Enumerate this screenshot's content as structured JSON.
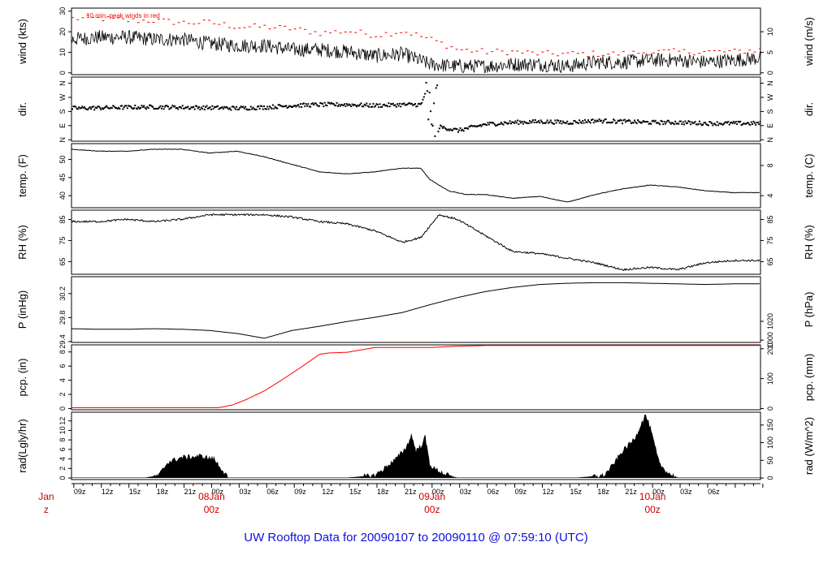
{
  "title": "UW Rooftop Data for 20090107  to  20090110 @ 07:59:10  (UTC)",
  "colors": {
    "title": "#1010dd",
    "date_labels": "#cc0000",
    "line": "#000000",
    "precip": "#ff0000",
    "peak_winds": "#ff0000",
    "background": "#ffffff"
  },
  "x_axis": {
    "hour_labels": [
      "09z",
      "12z",
      "15z",
      "18z",
      "21z",
      "00z",
      "03z",
      "06z",
      "09z",
      "12z",
      "15z",
      "18z",
      "21z",
      "00z",
      "03z",
      "06z",
      "09z",
      "12z",
      "15z",
      "18z",
      "21z",
      "00z",
      "03z",
      "06z"
    ],
    "date_labels": [
      {
        "hour_index": -3,
        "line1": "Jan",
        "line2": "z"
      },
      {
        "hour_index": 15,
        "line1": "08Jan",
        "line2": "00z"
      },
      {
        "hour_index": 39,
        "line1": "09Jan",
        "line2": "00z"
      },
      {
        "hour_index": 63,
        "line1": "10Jan",
        "line2": "00z"
      }
    ]
  },
  "chart_data": [
    {
      "type": "line",
      "left_label": "wind (kts)",
      "right_label": "wind (m/s)",
      "annotation": "10 min. peak winds in red",
      "left_ticks": [
        "0",
        "10",
        "20",
        "30"
      ],
      "right_ticks": [
        "0",
        "5",
        "10"
      ],
      "ylim": [
        -1,
        31
      ],
      "legend": "top-left",
      "series": [
        {
          "name": "10 min. peak winds",
          "color": "#ff0000",
          "x": [
            0,
            3,
            6,
            9,
            12,
            15,
            18,
            21,
            24,
            27,
            30,
            33,
            36,
            39,
            42,
            45,
            48,
            51,
            54,
            57,
            60,
            63,
            66,
            69,
            72,
            75
          ],
          "y": [
            26,
            26,
            25,
            25,
            24,
            24,
            22,
            22,
            21,
            19,
            20,
            18,
            20,
            16,
            11,
            10,
            10,
            9,
            9,
            9,
            9,
            10,
            10,
            10,
            10,
            11
          ]
        },
        {
          "name": "wind",
          "color": "#000000",
          "x": [
            0,
            3,
            6,
            9,
            12,
            15,
            18,
            21,
            24,
            27,
            30,
            33,
            36,
            39,
            42,
            45,
            48,
            51,
            54,
            57,
            60,
            63,
            66,
            69,
            72,
            75
          ],
          "y": [
            16,
            17,
            17,
            16,
            16,
            14,
            13,
            13,
            11,
            11,
            10,
            8,
            9,
            4,
            3,
            3,
            4,
            4,
            3,
            5,
            5,
            6,
            6,
            5,
            6,
            7
          ]
        }
      ]
    },
    {
      "type": "scatter",
      "left_label": "dir.",
      "right_label": "dir.",
      "left_ticks": [
        "N",
        "E",
        "S",
        "W",
        "N"
      ],
      "right_ticks": [
        "N",
        "E",
        "S",
        "W",
        "N"
      ],
      "ylim": [
        0,
        360
      ],
      "series": [
        {
          "name": "direction",
          "x": [
            0,
            3,
            6,
            9,
            12,
            15,
            18,
            21,
            24,
            27,
            30,
            33,
            36,
            38,
            39,
            39.5,
            40,
            42,
            45,
            48,
            51,
            54,
            57,
            60,
            63,
            66,
            69,
            72,
            75
          ],
          "y": [
            185,
            187,
            190,
            192,
            190,
            188,
            185,
            190,
            200,
            205,
            205,
            200,
            205,
            205,
            360,
            30,
            80,
            60,
            95,
            105,
            110,
            105,
            115,
            110,
            105,
            105,
            100,
            100,
            100
          ]
        }
      ]
    },
    {
      "type": "line",
      "left_label": "temp. (F)",
      "right_label": "temp. (C)",
      "left_ticks": [
        "40",
        "45",
        "50"
      ],
      "right_ticks": [
        "4",
        "8"
      ],
      "ylim": [
        37.5,
        54.5
      ],
      "series": [
        {
          "name": "temperature",
          "x": [
            0,
            3,
            6,
            9,
            12,
            15,
            18,
            21,
            24,
            27,
            30,
            33,
            36,
            38,
            39,
            41,
            43,
            45,
            48,
            51,
            54,
            57,
            60,
            63,
            66,
            69,
            72,
            75
          ],
          "y": [
            53,
            52.5,
            52.5,
            53,
            53,
            52,
            52.5,
            51,
            49,
            47,
            46.5,
            47,
            48,
            48,
            45,
            42,
            41,
            41,
            40,
            40.5,
            39,
            41,
            42.5,
            43.5,
            43,
            42,
            41.5,
            41.5
          ]
        }
      ]
    },
    {
      "type": "line",
      "left_label": "RH (%)",
      "right_label": "RH (%)",
      "left_ticks": [
        "65",
        "75",
        "85"
      ],
      "right_ticks": [
        "65",
        "75",
        "85"
      ],
      "ylim": [
        61,
        89
      ],
      "series": [
        {
          "name": "relative humidity",
          "x": [
            0,
            3,
            6,
            9,
            12,
            15,
            18,
            21,
            24,
            27,
            30,
            33,
            36,
            38,
            40,
            42,
            45,
            48,
            51,
            54,
            57,
            60,
            63,
            66,
            69,
            72,
            75
          ],
          "y": [
            84,
            84,
            85,
            84,
            85,
            87,
            87,
            87,
            86,
            84,
            83,
            80,
            75,
            77,
            87,
            85,
            78,
            71,
            70,
            68,
            66,
            63,
            64,
            63,
            66,
            67,
            67
          ]
        }
      ]
    },
    {
      "type": "line",
      "left_label": "P (inHg)",
      "right_label": "P (hPa)",
      "left_ticks": [
        "29.4",
        "29.8",
        "30.2"
      ],
      "right_ticks": [
        "1000",
        "1020"
      ],
      "ylim": [
        29.35,
        30.45
      ],
      "series": [
        {
          "name": "pressure",
          "x": [
            0,
            3,
            6,
            9,
            12,
            15,
            18,
            21,
            24,
            27,
            30,
            33,
            36,
            39,
            42,
            45,
            48,
            51,
            54,
            57,
            60,
            63,
            66,
            69,
            72,
            75
          ],
          "y": [
            29.58,
            29.57,
            29.57,
            29.58,
            29.57,
            29.55,
            29.5,
            29.42,
            29.55,
            29.62,
            29.7,
            29.77,
            29.85,
            29.98,
            30.1,
            30.2,
            30.27,
            30.32,
            30.34,
            30.35,
            30.35,
            30.34,
            30.33,
            30.32,
            30.33,
            30.33
          ]
        }
      ]
    },
    {
      "type": "line",
      "left_label": "pcp. (in)",
      "right_label": "pcp. (mm)",
      "left_ticks": [
        "0",
        "2",
        "4",
        "6",
        "8"
      ],
      "right_ticks": [
        "0",
        "100",
        "200"
      ],
      "ylim": [
        -0.3,
        9.3
      ],
      "series": [
        {
          "name": "precipitation",
          "color": "#ff0000",
          "x": [
            0,
            16,
            17.5,
            19,
            21,
            23,
            25,
            27,
            28,
            30,
            33,
            36,
            39,
            42,
            45,
            50,
            55,
            60,
            65,
            70,
            75
          ],
          "y": [
            0,
            0,
            0.4,
            1.2,
            2.5,
            4.2,
            6,
            7.9,
            8.1,
            8.2,
            8.9,
            8.9,
            8.9,
            9.1,
            9.2,
            9.2,
            9.2,
            9.2,
            9.2,
            9.2,
            9.2
          ]
        }
      ]
    },
    {
      "type": "area",
      "left_label": "rad(Lgly/hr)",
      "right_label": "rad (W/m^2)",
      "left_ticks": [
        "0",
        "2",
        "4",
        "6",
        "8",
        "10",
        "12"
      ],
      "right_ticks": [
        "0",
        "50",
        "100",
        "150"
      ],
      "ylim": [
        -0.4,
        14.6
      ],
      "series": [
        {
          "name": "radiation",
          "x": [
            0,
            8,
            9.5,
            10.5,
            12,
            14,
            15.5,
            16.5,
            17,
            30,
            33,
            34,
            35.5,
            36.5,
            37,
            37.5,
            38,
            38.5,
            39,
            39.5,
            40,
            41,
            42,
            55,
            58,
            59,
            60,
            61,
            61.5,
            62,
            62.5,
            63,
            63.5,
            64,
            65,
            66,
            75
          ],
          "y": [
            0,
            0,
            0.5,
            3.5,
            4.5,
            4.8,
            4.2,
            1.5,
            0,
            0,
            0.5,
            2,
            4.5,
            7,
            9.5,
            6,
            7,
            9,
            3,
            2,
            1.5,
            0.5,
            0,
            0,
            0.5,
            3,
            6,
            8,
            9.5,
            12,
            14,
            11,
            7,
            3,
            1,
            0,
            0
          ]
        }
      ]
    }
  ]
}
